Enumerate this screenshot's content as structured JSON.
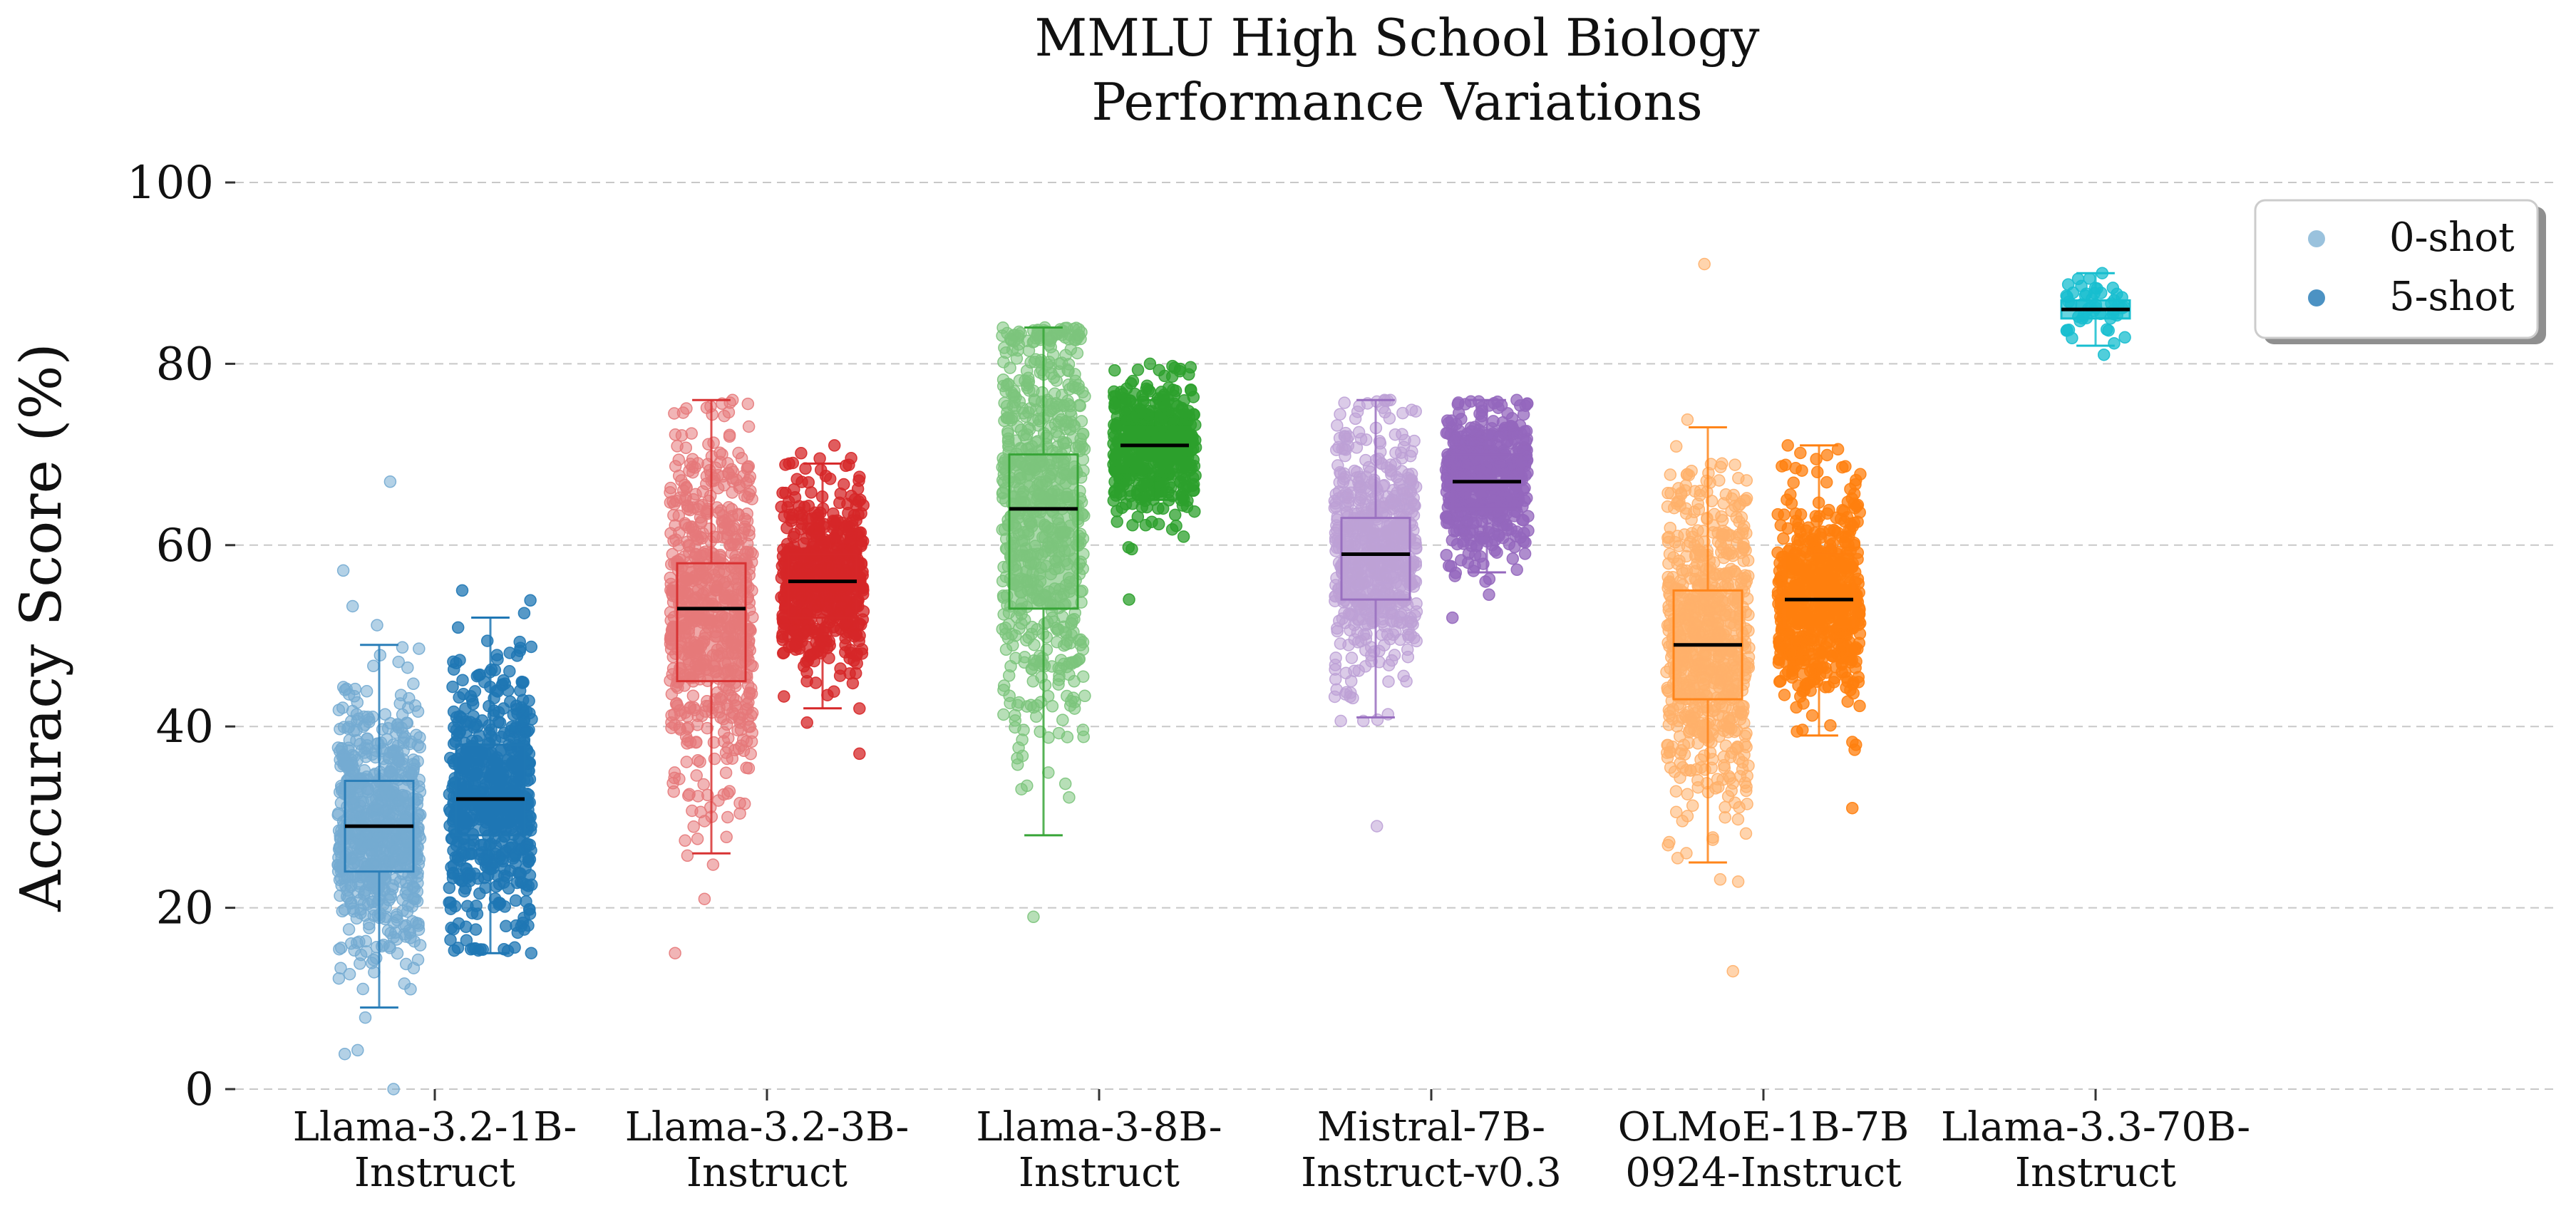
{
  "chart_data": {
    "type": "box-strip",
    "title_lines": [
      "MMLU High School Biology",
      "Performance Variations"
    ],
    "ylabel": "Accuracy Score (%)",
    "ylim": [
      0,
      100
    ],
    "yticks": [
      0,
      20,
      40,
      60,
      80,
      100
    ],
    "grid": true,
    "legend_position": "top-right",
    "legend": [
      {
        "label": "0-shot",
        "color": "#1f77b4",
        "alpha": 0.45
      },
      {
        "label": "5-shot",
        "color": "#1f77b4",
        "alpha": 0.8
      }
    ],
    "categories": [
      {
        "lines": [
          "Llama-3.2-1B-",
          "Instruct"
        ]
      },
      {
        "lines": [
          "Llama-3.2-3B-",
          "Instruct"
        ]
      },
      {
        "lines": [
          "Llama-3-8B-",
          "Instruct"
        ]
      },
      {
        "lines": [
          "Mistral-7B-",
          "Instruct-v0.3"
        ]
      },
      {
        "lines": [
          "OLMoE-1B-7B",
          "0924-Instruct"
        ]
      },
      {
        "lines": [
          "Llama-3.3-70B-",
          "Instruct"
        ]
      }
    ],
    "series": [
      {
        "category": 0,
        "setting": "0-shot",
        "color": "#1f77b4",
        "light": true,
        "box": {
          "whisker_low": 9,
          "q1": 24,
          "median": 29,
          "q3": 34,
          "whisker_high": 49
        },
        "points": {
          "min": 0,
          "max": 67,
          "count": 700
        }
      },
      {
        "category": 0,
        "setting": "5-shot",
        "color": "#1f77b4",
        "light": false,
        "box": {
          "whisker_low": 15,
          "q1": 28,
          "median": 32,
          "q3": 38,
          "whisker_high": 52
        },
        "points": {
          "min": 15,
          "max": 55,
          "count": 600
        }
      },
      {
        "category": 1,
        "setting": "0-shot",
        "color": "#d62728",
        "light": true,
        "box": {
          "whisker_low": 26,
          "q1": 45,
          "median": 53,
          "q3": 58,
          "whisker_high": 76
        },
        "points": {
          "min": 15,
          "max": 76,
          "count": 700
        }
      },
      {
        "category": 1,
        "setting": "5-shot",
        "color": "#d62728",
        "light": false,
        "box": {
          "whisker_low": 42,
          "q1": 52,
          "median": 56,
          "q3": 59,
          "whisker_high": 69
        },
        "points": {
          "min": 37,
          "max": 71,
          "count": 600
        }
      },
      {
        "category": 2,
        "setting": "0-shot",
        "color": "#2ca02c",
        "light": true,
        "box": {
          "whisker_low": 28,
          "q1": 53,
          "median": 64,
          "q3": 70,
          "whisker_high": 84
        },
        "points": {
          "min": 19,
          "max": 84,
          "count": 700
        }
      },
      {
        "category": 2,
        "setting": "5-shot",
        "color": "#2ca02c",
        "light": false,
        "box": {
          "whisker_low": 65,
          "q1": 68,
          "median": 71,
          "q3": 73,
          "whisker_high": 76
        },
        "points": {
          "min": 54,
          "max": 80,
          "count": 500
        }
      },
      {
        "category": 3,
        "setting": "0-shot",
        "color": "#9467bd",
        "light": true,
        "box": {
          "whisker_low": 41,
          "q1": 54,
          "median": 59,
          "q3": 63,
          "whisker_high": 76
        },
        "points": {
          "min": 29,
          "max": 76,
          "count": 650
        }
      },
      {
        "category": 3,
        "setting": "5-shot",
        "color": "#9467bd",
        "light": false,
        "box": {
          "whisker_low": 57,
          "q1": 64,
          "median": 67,
          "q3": 70,
          "whisker_high": 76
        },
        "points": {
          "min": 52,
          "max": 76,
          "count": 500
        }
      },
      {
        "category": 4,
        "setting": "0-shot",
        "color": "#ff7f0e",
        "light": true,
        "box": {
          "whisker_low": 25,
          "q1": 43,
          "median": 49,
          "q3": 55,
          "whisker_high": 73
        },
        "points": {
          "min": 13,
          "max": 91,
          "count": 700
        }
      },
      {
        "category": 4,
        "setting": "5-shot",
        "color": "#ff7f0e",
        "light": false,
        "box": {
          "whisker_low": 39,
          "q1": 51,
          "median": 54,
          "q3": 59,
          "whisker_high": 71
        },
        "points": {
          "min": 31,
          "max": 71,
          "count": 600
        }
      },
      {
        "category": 5,
        "setting": "0-shot",
        "color": "#17becf",
        "light": false,
        "box": {
          "whisker_low": 82,
          "q1": 85,
          "median": 86,
          "q3": 87,
          "whisker_high": 90
        },
        "points": {
          "min": 81,
          "max": 90,
          "count": 50
        }
      }
    ]
  }
}
